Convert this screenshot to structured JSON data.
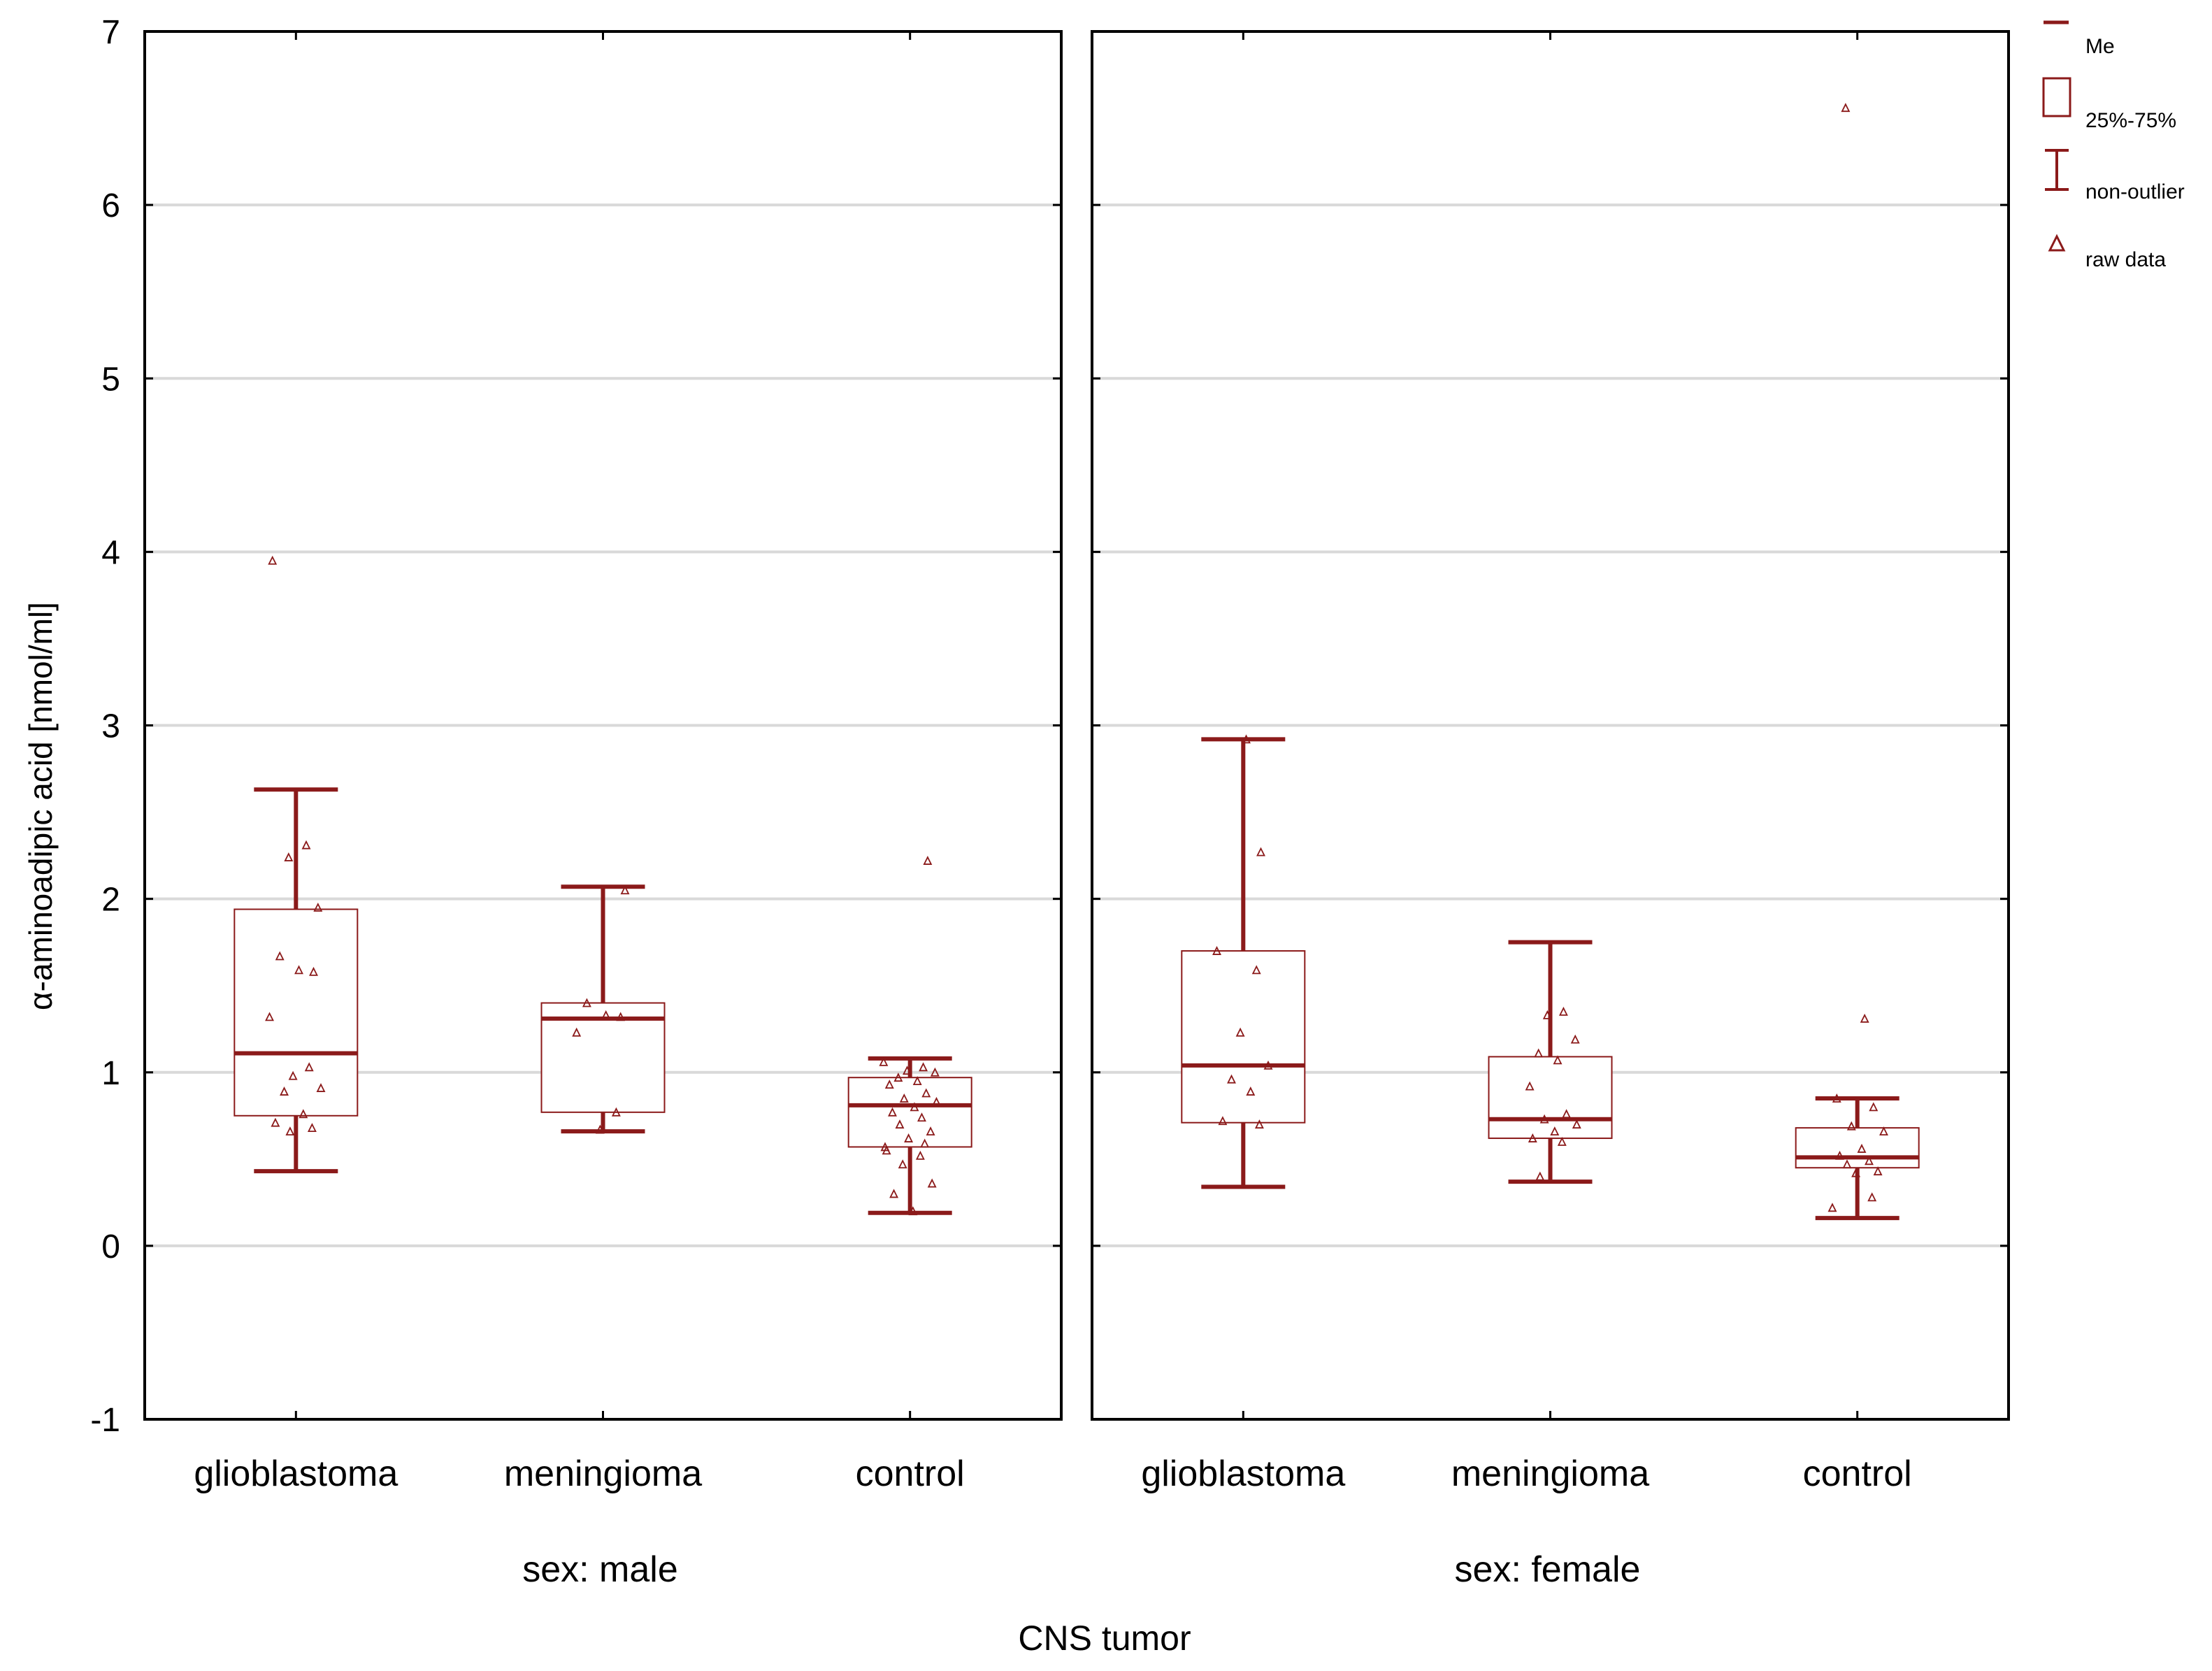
{
  "colors": {
    "series": "#8b1a1a",
    "grid": "#d9d9d9",
    "frame": "#000000",
    "raw": "#8b1a1a"
  },
  "chart_data": {
    "type": "box",
    "ylabel": "α-aminoadipic acid [nmol/ml]",
    "xlabel": "CNS tumor",
    "ylim": [
      -1,
      7
    ],
    "yticks": [
      "-1",
      "0",
      "1",
      "2",
      "3",
      "4",
      "5",
      "6",
      "7"
    ],
    "grid": true,
    "legend_position": "top-right",
    "legend": [
      {
        "symbol": "median-line",
        "label": "Me"
      },
      {
        "symbol": "box",
        "label": "25%-75%"
      },
      {
        "symbol": "whisker",
        "label": "non-outlier"
      },
      {
        "symbol": "triangle",
        "label": "raw data"
      }
    ],
    "panels": [
      {
        "label": "sex: male",
        "groups": [
          {
            "name": "glioblastoma",
            "median": 1.11,
            "q1": 0.75,
            "q3": 1.94,
            "whisker_low": 0.43,
            "whisker_high": 2.63,
            "raw": [
              3.95,
              2.31,
              2.24,
              1.95,
              1.67,
              1.59,
              1.58,
              1.32,
              1.03,
              0.98,
              0.91,
              0.89,
              0.76,
              0.71,
              0.68,
              0.66
            ]
          },
          {
            "name": "meningioma",
            "median": 1.31,
            "q1": 0.77,
            "q3": 1.4,
            "whisker_low": 0.66,
            "whisker_high": 2.07,
            "raw": [
              2.05,
              1.4,
              1.33,
              1.32,
              1.23,
              0.77,
              0.67
            ]
          },
          {
            "name": "control",
            "median": 0.81,
            "q1": 0.57,
            "q3": 0.97,
            "whisker_low": 0.19,
            "whisker_high": 1.08,
            "raw": [
              2.22,
              1.06,
              1.03,
              1.01,
              1.0,
              0.97,
              0.95,
              0.93,
              0.88,
              0.85,
              0.83,
              0.8,
              0.77,
              0.74,
              0.7,
              0.66,
              0.62,
              0.59,
              0.57,
              0.55,
              0.52,
              0.47,
              0.36,
              0.3,
              0.2
            ]
          }
        ]
      },
      {
        "label": "sex: female",
        "groups": [
          {
            "name": "glioblastoma",
            "median": 1.04,
            "q1": 0.71,
            "q3": 1.7,
            "whisker_low": 0.34,
            "whisker_high": 2.92,
            "raw": [
              2.92,
              2.27,
              1.7,
              1.59,
              1.23,
              1.04,
              0.96,
              0.89,
              0.72,
              0.7
            ]
          },
          {
            "name": "meningioma",
            "median": 0.73,
            "q1": 0.62,
            "q3": 1.09,
            "whisker_low": 0.37,
            "whisker_high": 1.75,
            "raw": [
              1.35,
              1.33,
              1.19,
              1.11,
              1.07,
              0.92,
              0.76,
              0.73,
              0.7,
              0.66,
              0.62,
              0.6,
              0.4
            ]
          },
          {
            "name": "control",
            "median": 0.51,
            "q1": 0.45,
            "q3": 0.68,
            "whisker_low": 0.16,
            "whisker_high": 0.85,
            "raw": [
              6.56,
              1.31,
              0.85,
              0.8,
              0.69,
              0.66,
              0.56,
              0.52,
              0.49,
              0.47,
              0.43,
              0.42,
              0.28,
              0.22
            ]
          }
        ]
      }
    ]
  }
}
